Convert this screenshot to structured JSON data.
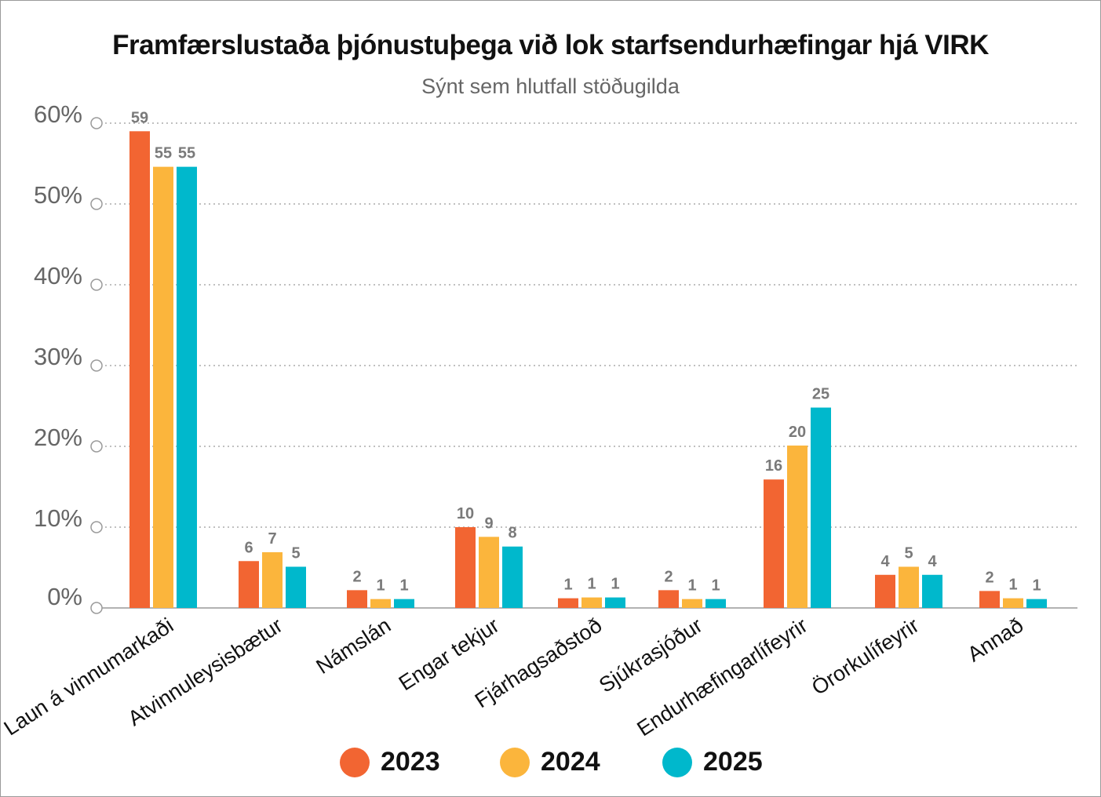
{
  "chart_data": {
    "type": "bar",
    "title": "Framfærslustaða þjónustuþega við lok starfsendurhæfingar hjá VIRK",
    "subtitle": "Sýnt sem hlutfall stöðugilda",
    "categories": [
      "Laun á vinnumarkaði",
      "Atvinnuleysisbætur",
      "Námslán",
      "Engar tekjur",
      "Fjárhagsaðstoð",
      "Sjúkrasjóður",
      "Endurhæfingarlífeyrir",
      "Örorkulífeyrir",
      "Annað"
    ],
    "series": [
      {
        "name": "2023",
        "color": "#f26532",
        "values": [
          59,
          6,
          2,
          10,
          1,
          2,
          16,
          4,
          2
        ],
        "heights": [
          59,
          5.8,
          2.2,
          10,
          1.2,
          2.2,
          15.9,
          4.1,
          2.1
        ]
      },
      {
        "name": "2024",
        "color": "#fbb53c",
        "values": [
          55,
          7,
          1,
          9,
          1,
          1,
          20,
          5,
          1
        ],
        "heights": [
          54.6,
          6.9,
          1.1,
          8.8,
          1.3,
          1.1,
          20.1,
          5.1,
          1.2
        ]
      },
      {
        "name": "2025",
        "color": "#00b8cc",
        "values": [
          55,
          5,
          1,
          8,
          1,
          1,
          25,
          4,
          1
        ],
        "heights": [
          54.6,
          5.1,
          1.1,
          7.6,
          1.3,
          1.1,
          24.8,
          4.1,
          1.1
        ]
      }
    ],
    "yticks": [
      "0%",
      "10%",
      "20%",
      "30%",
      "40%",
      "50%",
      "60%"
    ],
    "ylim": [
      0,
      60
    ],
    "grid": true,
    "legend_position": "bottom"
  }
}
